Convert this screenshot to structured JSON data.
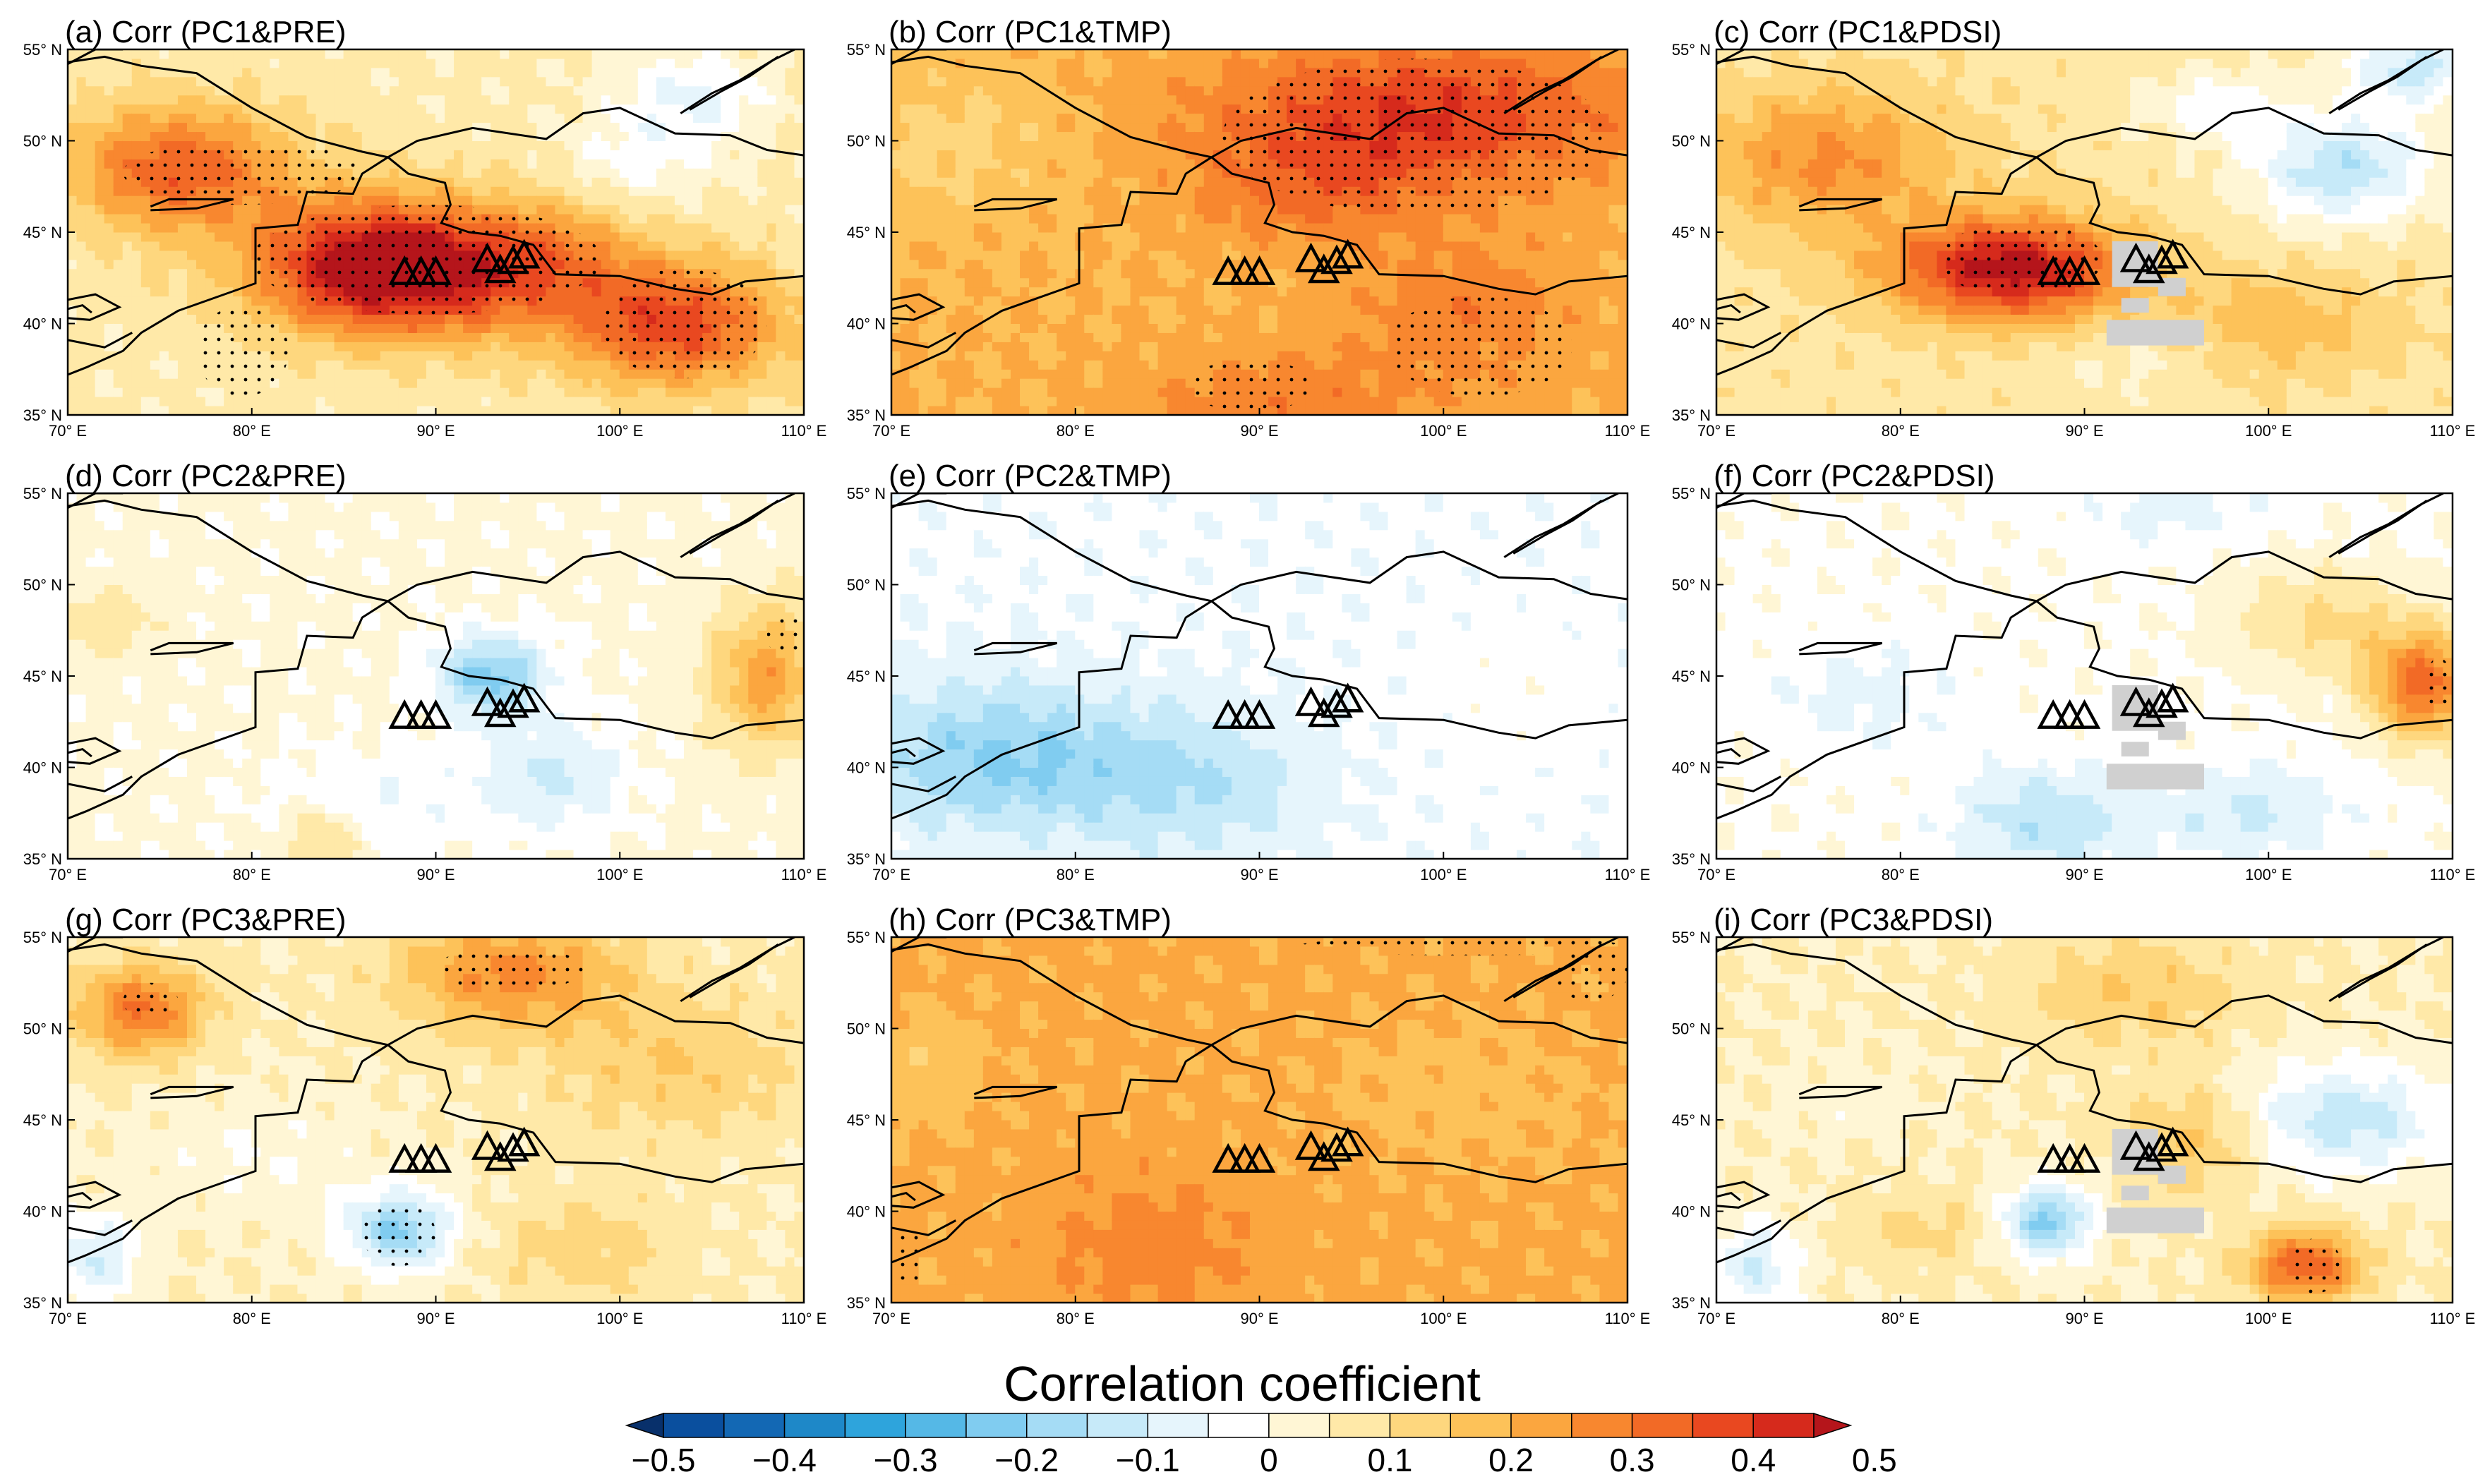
{
  "chart_data": {
    "type": "heatmap",
    "colorbar": {
      "title": "Correlation coefficient",
      "levels": [
        -0.5,
        -0.45,
        -0.4,
        -0.35,
        -0.3,
        -0.25,
        -0.2,
        -0.15,
        -0.1,
        -0.05,
        0,
        0.05,
        0.1,
        0.15,
        0.2,
        0.25,
        0.3,
        0.35,
        0.4,
        0.45,
        0.5
      ],
      "tick_labels": [
        "−0.5",
        "−0.4",
        "−0.3",
        "−0.2",
        "−0.1",
        "0",
        "0.1",
        "0.2",
        "0.3",
        "0.4",
        "0.5"
      ],
      "colors": [
        "#08306b",
        "#0a4f9e",
        "#1368b4",
        "#1e88c8",
        "#2ea4dc",
        "#55b8e6",
        "#80ccf0",
        "#a5dcf5",
        "#c7eaf9",
        "#e6f5fc",
        "#ffffff",
        "#fff6d5",
        "#ffe9a8",
        "#fed77e",
        "#fdc259",
        "#fba63f",
        "#f8872f",
        "#f26a26",
        "#e94820",
        "#d62a1c",
        "#b5151b"
      ]
    },
    "x_ticks": [
      "70° E",
      "80° E",
      "90° E",
      "100° E",
      "110° E"
    ],
    "y_ticks": [
      "55° N",
      "50° N",
      "45° N",
      "40° N",
      "35° N"
    ],
    "xlim": [
      70,
      110
    ],
    "ylim": [
      35,
      55
    ],
    "stations": [
      [
        88.3,
        42.7
      ],
      [
        89.2,
        42.7
      ],
      [
        90.0,
        42.7
      ],
      [
        92.8,
        43.4
      ],
      [
        93.5,
        42.8
      ],
      [
        94.2,
        43.3
      ],
      [
        94.8,
        43.6
      ]
    ],
    "panels": [
      {
        "id": "a",
        "title": "(a) Corr (PC1&PRE)",
        "base": 0.06,
        "mask": false,
        "blobs": [
          [
            89,
            43,
            8,
            3.6,
            0.44
          ],
          [
            85,
            43.5,
            5,
            4,
            0.1
          ],
          [
            76,
            48.5,
            6,
            3.5,
            0.28
          ],
          [
            103,
            40,
            6,
            3.5,
            0.32
          ],
          [
            97,
            44,
            4,
            3,
            0.08
          ],
          [
            104,
            52.5,
            4,
            2.5,
            -0.12
          ],
          [
            101,
            49,
            4,
            2.5,
            -0.08
          ]
        ],
        "stipple": [
          [
            73,
            86,
            46.5,
            50
          ],
          [
            80,
            99,
            40.5,
            46.5
          ],
          [
            99,
            108,
            37,
            43
          ],
          [
            77,
            82,
            36,
            41
          ]
        ]
      },
      {
        "id": "b",
        "title": "(b) Corr (PC1&TMP)",
        "base": 0.2,
        "mask": false,
        "blobs": [
          [
            99,
            51.5,
            11,
            4,
            0.2
          ],
          [
            101,
            40.5,
            6,
            4,
            0.09
          ],
          [
            91,
            36,
            7,
            2.5,
            0.09
          ],
          [
            73,
            50,
            6,
            4,
            -0.07
          ],
          [
            93,
            47.5,
            6,
            3,
            0.1
          ]
        ],
        "stipple": [
          [
            88,
            109,
            46,
            54.5
          ],
          [
            97,
            107,
            36,
            41.5
          ],
          [
            86,
            93,
            35.2,
            38
          ]
        ]
      },
      {
        "id": "c",
        "title": "(c) Corr (PC1&PDSI)",
        "base": 0.08,
        "mask": true,
        "blobs": [
          [
            86,
            43,
            6.5,
            2.8,
            0.4
          ],
          [
            76,
            49,
            7,
            4,
            0.18
          ],
          [
            101,
            40,
            6,
            3,
            0.1
          ],
          [
            104,
            48.5,
            5,
            3,
            -0.22
          ],
          [
            108,
            54,
            4,
            2,
            -0.2
          ],
          [
            97,
            52,
            4,
            2,
            -0.1
          ],
          [
            93,
            38,
            4,
            2,
            -0.05
          ]
        ],
        "stipple": [
          [
            82,
            91,
            41.5,
            45.5
          ]
        ]
      },
      {
        "id": "d",
        "title": "(d) Corr (PC2&PRE)",
        "base": 0.01,
        "mask": false,
        "blobs": [
          [
            93,
            45,
            3,
            2.2,
            -0.23
          ],
          [
            96,
            39.5,
            4,
            3,
            -0.12
          ],
          [
            108,
            45,
            3,
            4,
            0.22
          ],
          [
            86,
            38,
            5,
            3,
            -0.06
          ],
          [
            72,
            48,
            3,
            2,
            0.08
          ],
          [
            84,
            36,
            2,
            2,
            0.13
          ]
        ],
        "stipple": [
          [
            108,
            110,
            46,
            48.5
          ]
        ]
      },
      {
        "id": "e",
        "title": "(e) Corr (PC2&TMP)",
        "base": -0.04,
        "mask": false,
        "blobs": [
          [
            76,
            40.5,
            8,
            4,
            -0.17
          ],
          [
            87,
            39,
            6,
            4,
            -0.1
          ],
          [
            104,
            44,
            6,
            6,
            0.02
          ]
        ],
        "stipple": []
      },
      {
        "id": "f",
        "title": "(f) Corr (PC2&PDSI)",
        "base": -0.01,
        "mask": true,
        "blobs": [
          [
            108.5,
            44.5,
            3,
            3,
            0.33
          ],
          [
            103,
            48,
            5,
            3,
            0.12
          ],
          [
            88,
            37,
            5,
            3,
            -0.13
          ],
          [
            99,
            37.5,
            5,
            2.5,
            -0.1
          ],
          [
            78,
            44,
            5,
            3,
            -0.06
          ],
          [
            95,
            54,
            5,
            2,
            -0.06
          ]
        ],
        "stipple": [
          [
            108.5,
            110,
            43,
            46
          ]
        ]
      },
      {
        "id": "g",
        "title": "(g) Corr (PC3&PRE)",
        "base": 0.05,
        "mask": false,
        "blobs": [
          [
            88,
            39,
            3,
            2.2,
            -0.25
          ],
          [
            74,
            51,
            3.5,
            2.5,
            0.25
          ],
          [
            94,
            53,
            6,
            3,
            0.22
          ],
          [
            103,
            48,
            7,
            4,
            0.1
          ],
          [
            71.5,
            37.5,
            2.5,
            2.5,
            -0.15
          ],
          [
            98,
            38,
            5,
            3,
            0.08
          ],
          [
            80,
            43,
            6,
            3,
            -0.05
          ]
        ],
        "stipple": [
          [
            73,
            76,
            50.5,
            52.5
          ],
          [
            90,
            98,
            52,
            54.5
          ],
          [
            86,
            90,
            37,
            40.5
          ]
        ]
      },
      {
        "id": "h",
        "title": "(h) Corr (PC3&TMP)",
        "base": 0.21,
        "mask": false,
        "blobs": [
          [
            84,
            38,
            6,
            4,
            0.07
          ],
          [
            101,
            46.5,
            7,
            4,
            -0.03
          ],
          [
            72,
            48,
            3,
            3,
            -0.05
          ]
        ],
        "stipple": [
          [
            92,
            110,
            54,
            55
          ],
          [
            106,
            110,
            51.5,
            54.5
          ],
          [
            70,
            72,
            36,
            39
          ]
        ]
      },
      {
        "id": "i",
        "title": "(i) Corr (PC3&PDSI)",
        "base": 0.05,
        "mask": true,
        "blobs": [
          [
            102,
            37,
            3,
            2,
            0.3
          ],
          [
            104,
            45,
            6,
            3,
            -0.18
          ],
          [
            88,
            39.5,
            2.5,
            2,
            -0.26
          ],
          [
            96,
            44,
            4,
            3,
            0.12
          ],
          [
            93,
            52,
            6,
            3,
            0.1
          ],
          [
            72,
            37,
            2.5,
            2.5,
            -0.15
          ],
          [
            81,
            39,
            4,
            2,
            0.07
          ],
          [
            77,
            46,
            4,
            2,
            -0.03
          ]
        ],
        "stipple": [
          [
            101,
            104,
            35.5,
            38.5
          ]
        ]
      }
    ]
  }
}
